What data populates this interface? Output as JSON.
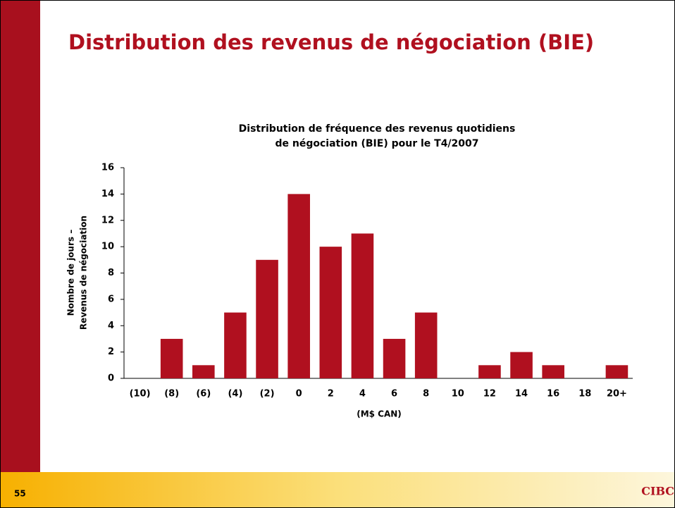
{
  "slide": {
    "title": "Distribution des revenus de négociation (BIE)",
    "page_number": "55",
    "logo": "CIBC"
  },
  "chart_data": {
    "type": "bar",
    "title": [
      "Distribution de fréquence des revenus quotidiens",
      "de négociation (BIE) pour le T4/2007"
    ],
    "y_label": [
      "Nombre de jours –",
      "Revenus de négociation"
    ],
    "x_label": "(M$ CAN)",
    "categories": [
      "(10)",
      "(8)",
      "(6)",
      "(4)",
      "(2)",
      "0",
      "2",
      "4",
      "6",
      "8",
      "10",
      "12",
      "14",
      "16",
      "18",
      "20+"
    ],
    "values": [
      0,
      3,
      1,
      5,
      9,
      14,
      10,
      11,
      3,
      5,
      0,
      1,
      2,
      1,
      0,
      1
    ],
    "color": "#b0101f",
    "ylim": [
      0,
      16
    ],
    "yticks": [
      0,
      2,
      4,
      6,
      8,
      10,
      12,
      14,
      16
    ],
    "grid": false
  }
}
